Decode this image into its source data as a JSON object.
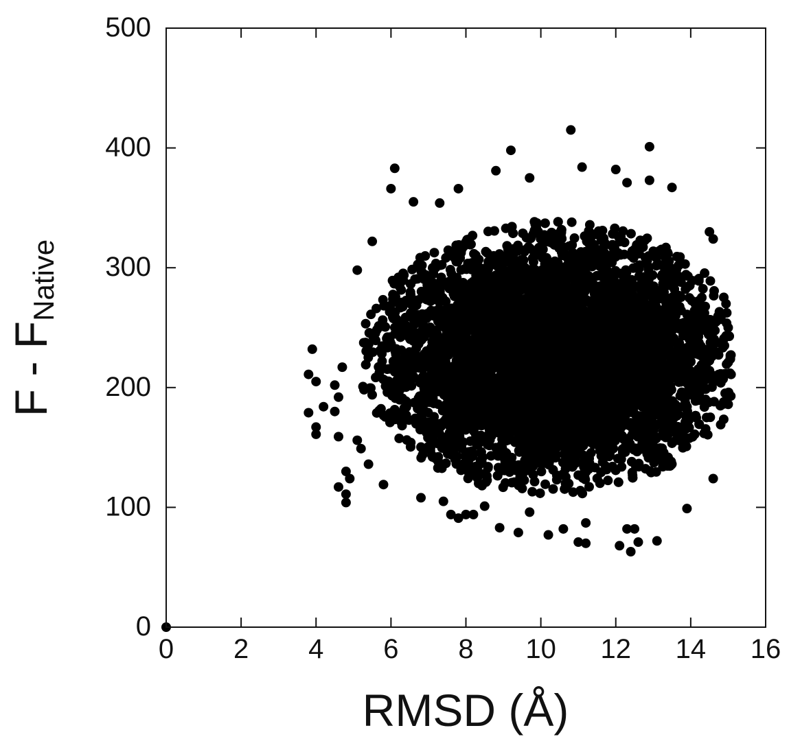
{
  "chart_data": {
    "type": "scatter",
    "title": "",
    "xlabel": "RMSD (Å)",
    "ylabel": {
      "main": "F - F",
      "subscript": "Native"
    },
    "xlim": [
      0,
      16
    ],
    "ylim": [
      0,
      500
    ],
    "xticks": [
      0,
      2,
      4,
      6,
      8,
      10,
      12,
      14,
      16
    ],
    "yticks": [
      0,
      100,
      200,
      300,
      400,
      500
    ],
    "marker_color": "#000000",
    "grid": false,
    "legend": "none",
    "native_point": {
      "x": 0,
      "y": 0
    },
    "cloud": {
      "x_center": 10.3,
      "y_center": 225,
      "x_spread": 2.3,
      "y_spread": 50,
      "x_range": [
        3.8,
        15.1
      ],
      "y_range": [
        63,
        415
      ]
    },
    "outliers": [
      {
        "x": 10.8,
        "y": 415
      },
      {
        "x": 12.9,
        "y": 401
      },
      {
        "x": 9.2,
        "y": 398
      },
      {
        "x": 6.1,
        "y": 383
      },
      {
        "x": 11.1,
        "y": 384
      },
      {
        "x": 12.0,
        "y": 382
      },
      {
        "x": 8.8,
        "y": 381
      },
      {
        "x": 9.7,
        "y": 375
      },
      {
        "x": 12.9,
        "y": 373
      },
      {
        "x": 12.3,
        "y": 371
      },
      {
        "x": 6.0,
        "y": 366
      },
      {
        "x": 7.8,
        "y": 366
      },
      {
        "x": 13.5,
        "y": 367
      },
      {
        "x": 6.6,
        "y": 355
      },
      {
        "x": 7.3,
        "y": 354
      },
      {
        "x": 5.5,
        "y": 322
      },
      {
        "x": 5.1,
        "y": 298
      },
      {
        "x": 14.5,
        "y": 330
      },
      {
        "x": 14.6,
        "y": 324
      },
      {
        "x": 3.9,
        "y": 232
      },
      {
        "x": 3.8,
        "y": 211
      },
      {
        "x": 4.0,
        "y": 205
      },
      {
        "x": 3.8,
        "y": 179
      },
      {
        "x": 4.0,
        "y": 167
      },
      {
        "x": 4.0,
        "y": 161
      },
      {
        "x": 4.2,
        "y": 184
      },
      {
        "x": 4.5,
        "y": 180
      },
      {
        "x": 4.6,
        "y": 159
      },
      {
        "x": 4.6,
        "y": 117
      },
      {
        "x": 4.8,
        "y": 111
      },
      {
        "x": 4.8,
        "y": 104
      },
      {
        "x": 4.8,
        "y": 130
      },
      {
        "x": 4.9,
        "y": 124
      },
      {
        "x": 4.6,
        "y": 192
      },
      {
        "x": 4.7,
        "y": 217
      },
      {
        "x": 4.5,
        "y": 202
      },
      {
        "x": 5.1,
        "y": 156
      },
      {
        "x": 5.2,
        "y": 149
      },
      {
        "x": 5.4,
        "y": 136
      },
      {
        "x": 5.8,
        "y": 119
      },
      {
        "x": 15.0,
        "y": 250
      },
      {
        "x": 15.0,
        "y": 221
      },
      {
        "x": 15.0,
        "y": 186
      },
      {
        "x": 14.8,
        "y": 169
      },
      {
        "x": 14.6,
        "y": 124
      },
      {
        "x": 14.9,
        "y": 235
      },
      {
        "x": 14.8,
        "y": 257
      },
      {
        "x": 7.6,
        "y": 94
      },
      {
        "x": 7.8,
        "y": 91
      },
      {
        "x": 8.0,
        "y": 94
      },
      {
        "x": 8.2,
        "y": 94
      },
      {
        "x": 8.9,
        "y": 83
      },
      {
        "x": 9.4,
        "y": 79
      },
      {
        "x": 10.2,
        "y": 77
      },
      {
        "x": 10.6,
        "y": 82
      },
      {
        "x": 11.2,
        "y": 87
      },
      {
        "x": 11.0,
        "y": 71
      },
      {
        "x": 11.2,
        "y": 70
      },
      {
        "x": 12.1,
        "y": 68
      },
      {
        "x": 12.3,
        "y": 82
      },
      {
        "x": 12.5,
        "y": 82
      },
      {
        "x": 12.4,
        "y": 63
      },
      {
        "x": 12.6,
        "y": 71
      },
      {
        "x": 13.1,
        "y": 72
      },
      {
        "x": 13.9,
        "y": 99
      },
      {
        "x": 6.8,
        "y": 108
      },
      {
        "x": 7.4,
        "y": 105
      },
      {
        "x": 8.5,
        "y": 101
      },
      {
        "x": 9.7,
        "y": 96
      }
    ]
  }
}
